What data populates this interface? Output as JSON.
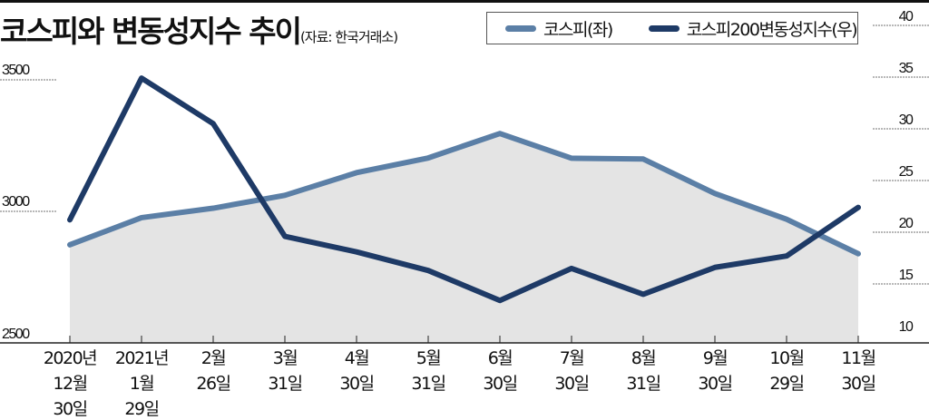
{
  "chart_data": {
    "type": "line",
    "title": "코스피와 변동성지수 추이",
    "source": "(자료: 한국거래소)",
    "categories": [
      [
        "2020년",
        "12월",
        "30일"
      ],
      [
        "2021년",
        "1월",
        "29일"
      ],
      [
        "2월",
        "26일"
      ],
      [
        "3월",
        "31일"
      ],
      [
        "4월",
        "30일"
      ],
      [
        "5월",
        "31일"
      ],
      [
        "6월",
        "30일"
      ],
      [
        "7월",
        "30일"
      ],
      [
        "8월",
        "31일"
      ],
      [
        "9월",
        "30일"
      ],
      [
        "10월",
        "29일"
      ],
      [
        "11월",
        "30일"
      ]
    ],
    "series": [
      {
        "name": "코스피(좌)",
        "axis": "left",
        "color": "#5b7fa6",
        "values": [
          2873,
          2976,
          3012,
          3061,
          3147,
          3203,
          3296,
          3202,
          3199,
          3068,
          2970,
          2839
        ]
      },
      {
        "name": "코스피200변동성지수(우)",
        "axis": "right",
        "color": "#1e3a66",
        "values": [
          21.2,
          34.9,
          30.5,
          19.6,
          18.1,
          16.3,
          13.4,
          16.5,
          14.0,
          16.6,
          17.7,
          22.4
        ]
      }
    ],
    "left_axis": {
      "ticks": [
        "2500",
        "3000",
        "3500"
      ],
      "ylim": [
        2500,
        3500
      ]
    },
    "right_axis": {
      "ticks": [
        "10",
        "15",
        "20",
        "25",
        "30",
        "35",
        "40"
      ],
      "ylim": [
        10,
        40
      ]
    },
    "fill_color": "#e4e4e4",
    "grid": "dashed ticks only",
    "legend": "top-right"
  }
}
